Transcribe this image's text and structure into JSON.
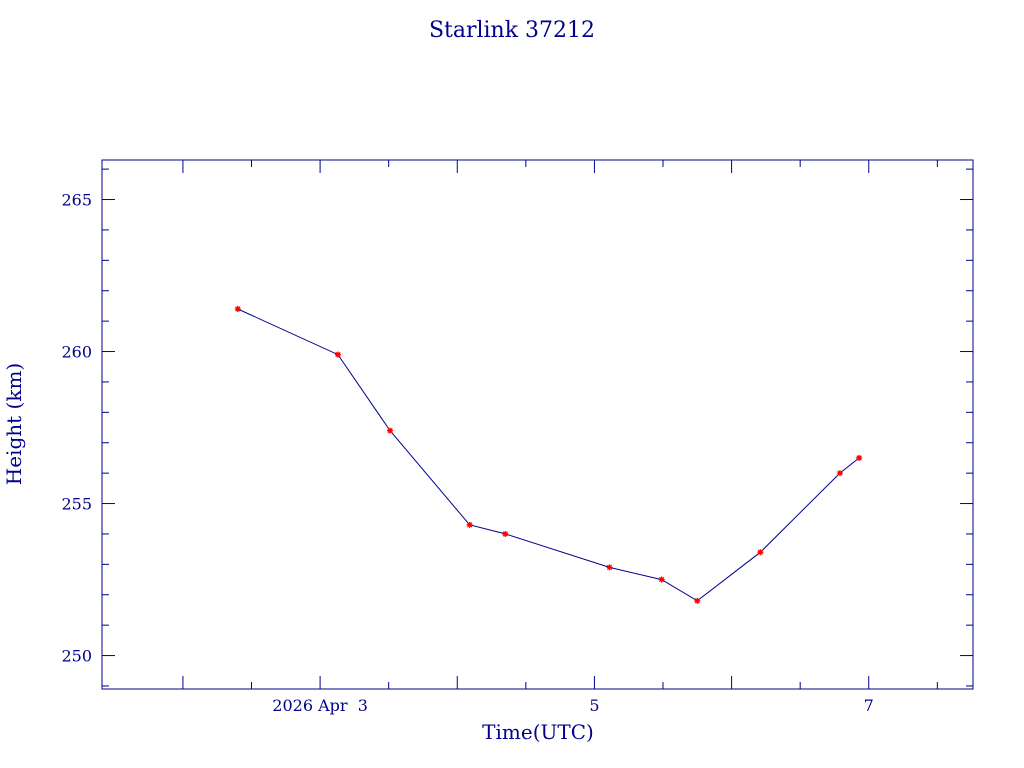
{
  "chart_data": {
    "type": "line",
    "title": "Starlink 37212",
    "xlabel": "Time(UTC)",
    "ylabel": "Height (km)",
    "x_unit": "days (April 2026, UTC)",
    "xlim": [
      1.41,
      7.76
    ],
    "ylim": [
      248.9,
      266.3
    ],
    "x_ticks": [
      {
        "value": 3,
        "label": "2026 Apr  3"
      },
      {
        "value": 5,
        "label": "5"
      },
      {
        "value": 7,
        "label": "7"
      }
    ],
    "y_ticks": [
      {
        "value": 250,
        "label": "250"
      },
      {
        "value": 255,
        "label": "255"
      },
      {
        "value": 260,
        "label": "260"
      },
      {
        "value": 265,
        "label": "265"
      }
    ],
    "grid": false,
    "legend": "none",
    "series": [
      {
        "x": [
          2.4,
          3.13,
          3.51,
          4.09,
          4.35,
          5.11,
          5.49,
          5.75,
          6.21,
          6.79,
          6.93
        ],
        "y": [
          261.4,
          259.9,
          257.4,
          254.3,
          254.0,
          252.9,
          252.5,
          251.8,
          253.4,
          256.0,
          256.5
        ],
        "line_color": "#00008b",
        "marker_color": "#ff0000",
        "marker": "star"
      }
    ]
  }
}
